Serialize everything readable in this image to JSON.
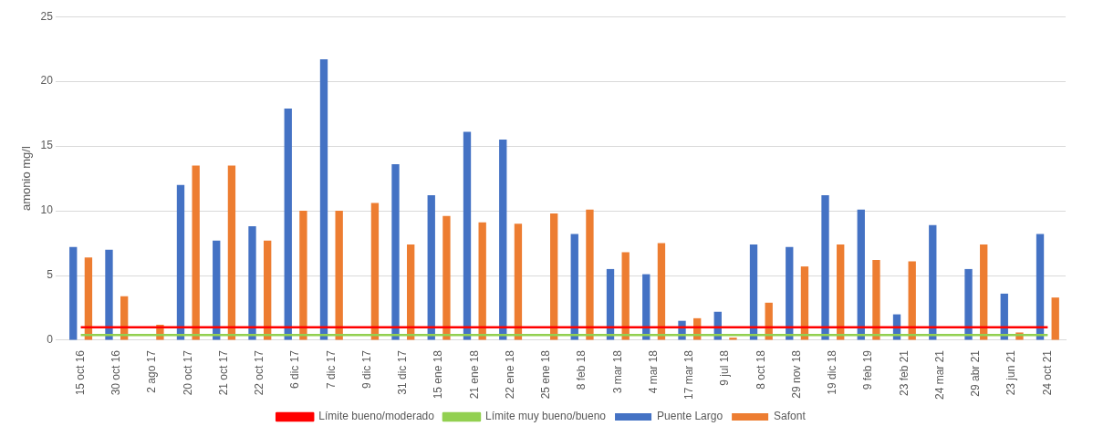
{
  "chart_data": {
    "type": "bar",
    "ylabel": "amonio mg/l",
    "categories": [
      "15 oct 16",
      "30 oct 16",
      "2 ago 17",
      "20 oct 17",
      "21 oct 17",
      "22 oct 17",
      "6 dic 17",
      "7 dic 17",
      "9 dic 17",
      "31 dic 17",
      "15 ene 18",
      "21 ene 18",
      "22 ene 18",
      "25 ene 18",
      "8 feb 18",
      "3 mar 18",
      "4 mar 18",
      "17 mar 18",
      "9 jul 18",
      "8 oct 18",
      "29 nov 18",
      "19 dic 18",
      "9 feb 19",
      "23 feb 21",
      "24 mar 21",
      "29 abr 21",
      "23 jun 21",
      "24 oct 21"
    ],
    "series": [
      {
        "name": "Puente Largo",
        "color": "#4472c4",
        "values": [
          7.2,
          7.0,
          null,
          12.0,
          7.7,
          8.8,
          17.9,
          21.7,
          null,
          13.6,
          11.2,
          16.1,
          15.5,
          null,
          8.2,
          5.5,
          5.1,
          1.5,
          2.2,
          7.4,
          7.2,
          11.2,
          10.1,
          2.0,
          8.9,
          5.5,
          3.6,
          8.2
        ]
      },
      {
        "name": "Safont",
        "color": "#ed7d31",
        "values": [
          6.4,
          3.4,
          1.2,
          13.5,
          13.5,
          7.7,
          10.0,
          10.0,
          10.6,
          7.4,
          9.6,
          9.1,
          9.0,
          9.8,
          10.1,
          6.8,
          7.5,
          1.7,
          0.2,
          2.9,
          5.7,
          7.4,
          6.2,
          6.1,
          null,
          7.4,
          0.6,
          3.3
        ]
      },
      {
        "name": "Límite bueno/moderado",
        "type": "line",
        "color": "#ff0000",
        "values": [
          1,
          1,
          1,
          1,
          1,
          1,
          1,
          1,
          1,
          1,
          1,
          1,
          1,
          1,
          1,
          1,
          1,
          1,
          1,
          1,
          1,
          1,
          1,
          1,
          1,
          1,
          1,
          1
        ]
      },
      {
        "name": "Límite muy bueno/bueno",
        "type": "line",
        "color": "#92d050",
        "values": [
          0.4,
          0.4,
          0.4,
          0.4,
          0.4,
          0.4,
          0.4,
          0.4,
          0.4,
          0.4,
          0.4,
          0.4,
          0.4,
          0.4,
          0.4,
          0.4,
          0.4,
          0.4,
          0.4,
          0.4,
          0.4,
          0.4,
          0.4,
          0.4,
          0.4,
          0.4,
          0.4,
          0.4
        ]
      }
    ],
    "ylim": [
      0,
      25
    ],
    "yticks": [
      0,
      5,
      10,
      15,
      20,
      25
    ],
    "grid": "y",
    "legend": "bottom"
  }
}
